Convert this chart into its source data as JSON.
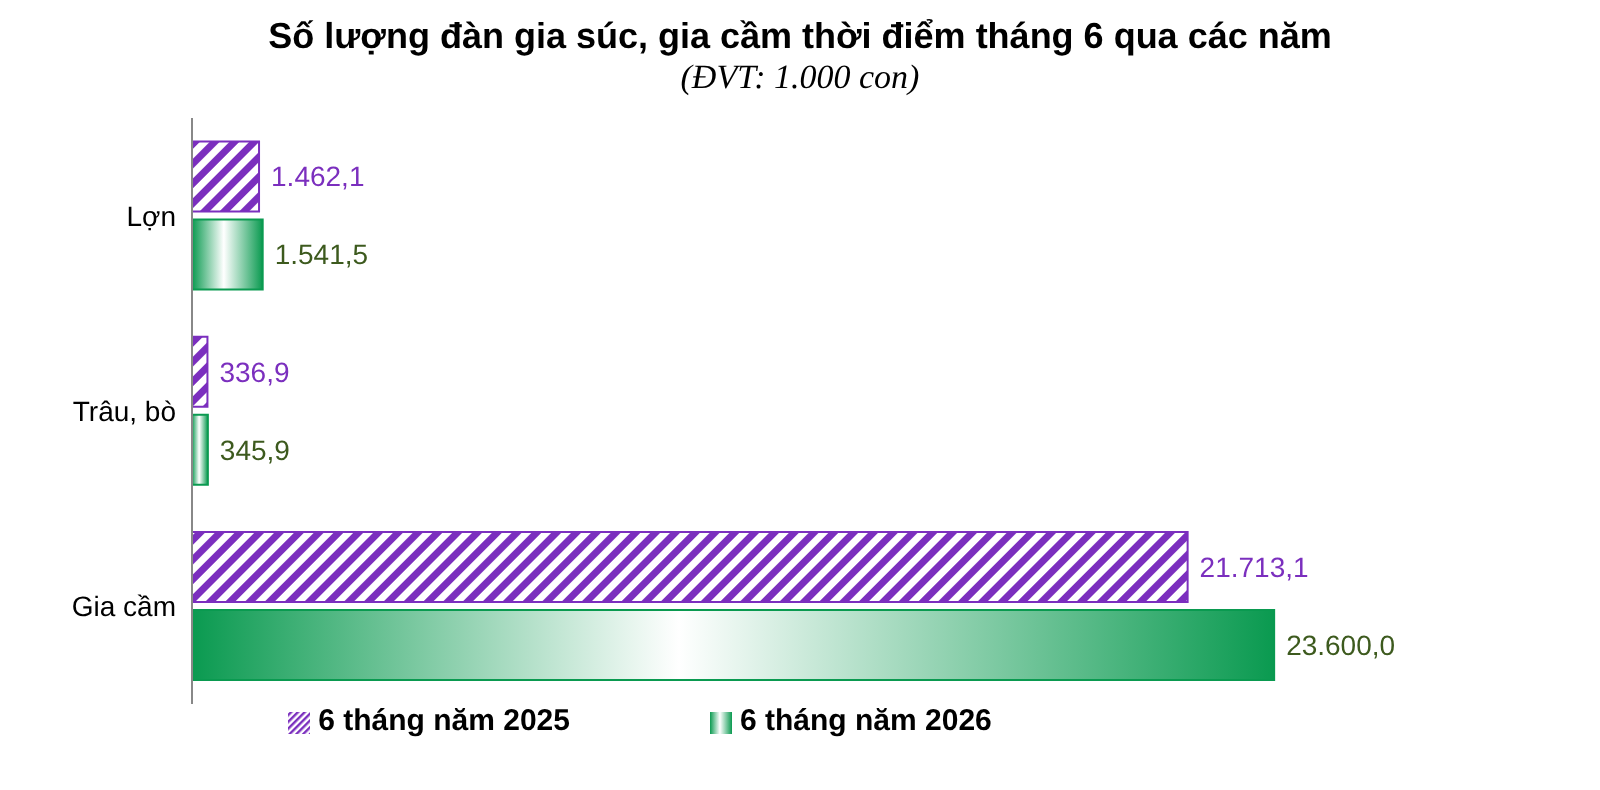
{
  "chart_data": {
    "type": "bar",
    "orientation": "horizontal",
    "title": "Số lượng đàn gia súc, gia cầm thời điểm tháng 6 qua các năm",
    "subtitle": "(ĐVT: 1.000 con)",
    "categories": [
      "Lợn",
      "Trâu, bò",
      "Gia cầm"
    ],
    "legend": "bottom",
    "grid": false,
    "series": [
      {
        "name": "6 tháng năm 2025",
        "color": "#7b2fbe",
        "values": [
          1462.1,
          336.9,
          21713.1
        ],
        "value_labels": [
          "1.462,1",
          "336,9",
          "21.713,1"
        ]
      },
      {
        "name": "6 tháng năm 2026",
        "color": "#0a9a50",
        "values": [
          1541.5,
          345.9,
          23600.0
        ],
        "value_labels": [
          "1.541,5",
          "345,9",
          "23.600,0"
        ]
      }
    ]
  }
}
